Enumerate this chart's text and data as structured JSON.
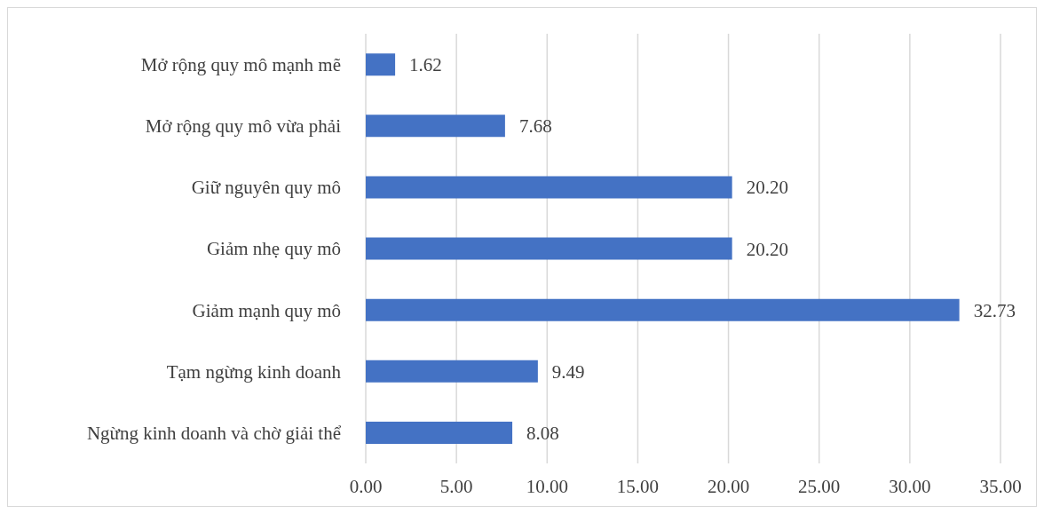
{
  "chart_data": {
    "type": "bar",
    "orientation": "horizontal",
    "categories": [
      "Mở rộng quy mô mạnh mẽ",
      "Mở rộng quy mô vừa phải",
      "Giữ nguyên quy mô",
      "Giảm nhẹ quy mô",
      "Giảm mạnh quy mô",
      "Tạm ngừng kinh doanh",
      "Ngừng kinh doanh và chờ giải thể"
    ],
    "values": [
      1.62,
      7.68,
      20.2,
      20.2,
      32.73,
      9.49,
      8.08
    ],
    "value_labels": [
      "1.62",
      "7.68",
      "20.20",
      "20.20",
      "32.73",
      "9.49",
      "8.08"
    ],
    "color": "#4472c4",
    "xlim": [
      0,
      35
    ],
    "xticks": [
      {
        "value": 0,
        "label": "0.00"
      },
      {
        "value": 5,
        "label": "5.00"
      },
      {
        "value": 10,
        "label": "10.00"
      },
      {
        "value": 15,
        "label": "15.00"
      },
      {
        "value": 20,
        "label": "20.00"
      },
      {
        "value": 25,
        "label": "25.00"
      },
      {
        "value": 30,
        "label": "30.00"
      },
      {
        "value": 35,
        "label": "35.00"
      }
    ],
    "grid": "x",
    "legend": false
  }
}
